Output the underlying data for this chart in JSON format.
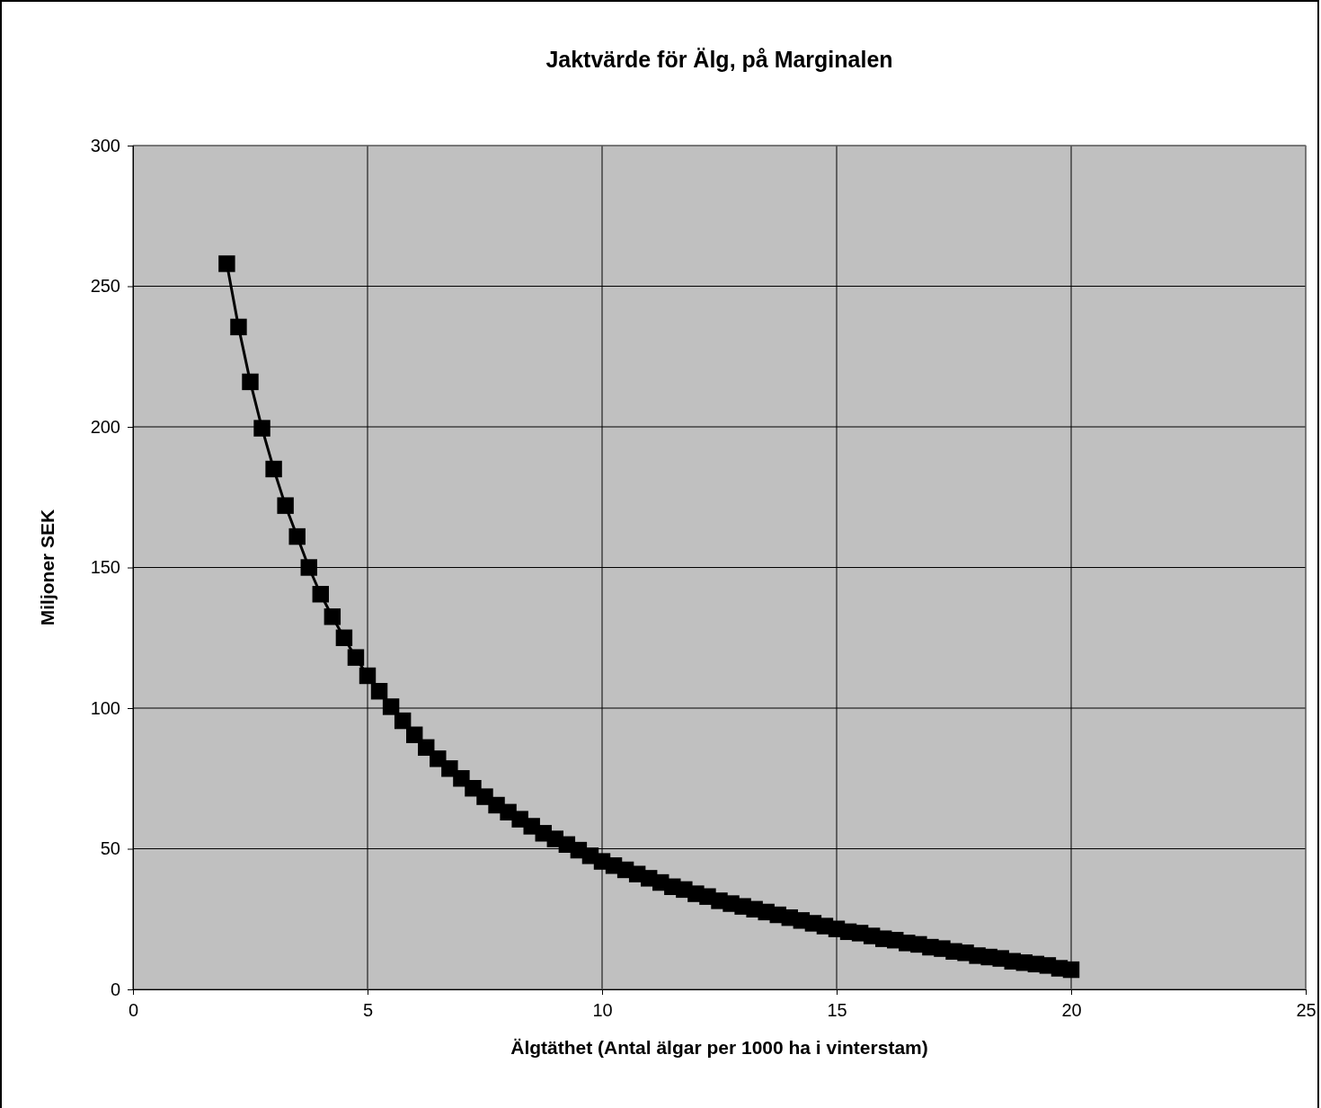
{
  "chart_data": {
    "type": "line",
    "title": "Jaktvärde för Älg, på Marginalen",
    "xlabel": "Älgtäthet (Antal älgar per 1000 ha i vinterstam)",
    "ylabel": "Miljoner SEK",
    "x": [
      2,
      2.25,
      2.5,
      2.75,
      3,
      3.25,
      3.5,
      3.75,
      4,
      4.25,
      4.5,
      4.75,
      5,
      5.25,
      5.5,
      5.75,
      6,
      6.25,
      6.5,
      6.75,
      7,
      7.25,
      7.5,
      7.75,
      8,
      8.25,
      8.5,
      8.75,
      9,
      9.25,
      9.5,
      9.75,
      10,
      10.25,
      10.5,
      10.75,
      11,
      11.25,
      11.5,
      11.75,
      12,
      12.25,
      12.5,
      12.75,
      13,
      13.25,
      13.5,
      13.75,
      14,
      14.25,
      14.5,
      14.75,
      15,
      15.25,
      15.5,
      15.75,
      16,
      16.25,
      16.5,
      16.75,
      17,
      17.25,
      17.5,
      17.75,
      18,
      18.25,
      18.5,
      18.75,
      19,
      19.25,
      19.5,
      19.75,
      20
    ],
    "series": [
      {
        "color": "#000000",
        "values": [
          258,
          235.5,
          216,
          199.5,
          185,
          172,
          161,
          150,
          140.5,
          132.5,
          125,
          118,
          111.5,
          106,
          100.5,
          95.5,
          90.5,
          86,
          82,
          78.5,
          75,
          71.5,
          68.5,
          65.5,
          63,
          60.5,
          58,
          55.5,
          53.5,
          51.5,
          49.5,
          47.5,
          45.5,
          44,
          42.5,
          41,
          39.5,
          38,
          36.5,
          35.5,
          34,
          33,
          31.5,
          30.5,
          29.5,
          28.5,
          27.5,
          26.5,
          25.5,
          24.5,
          23.5,
          22.5,
          21.5,
          20.5,
          20,
          19,
          18,
          17.5,
          16.5,
          16,
          15,
          14.5,
          13.5,
          13,
          12,
          11.5,
          11,
          10,
          9.5,
          9,
          8.5,
          7.5,
          7
        ]
      }
    ],
    "xlim": [
      0,
      25
    ],
    "xticks": [
      0,
      5,
      10,
      15,
      20,
      25
    ],
    "ylim": [
      0,
      300
    ],
    "yticks": [
      0,
      50,
      100,
      150,
      200,
      250,
      300
    ],
    "grid": true,
    "marker": "square",
    "line_style": "solid"
  }
}
